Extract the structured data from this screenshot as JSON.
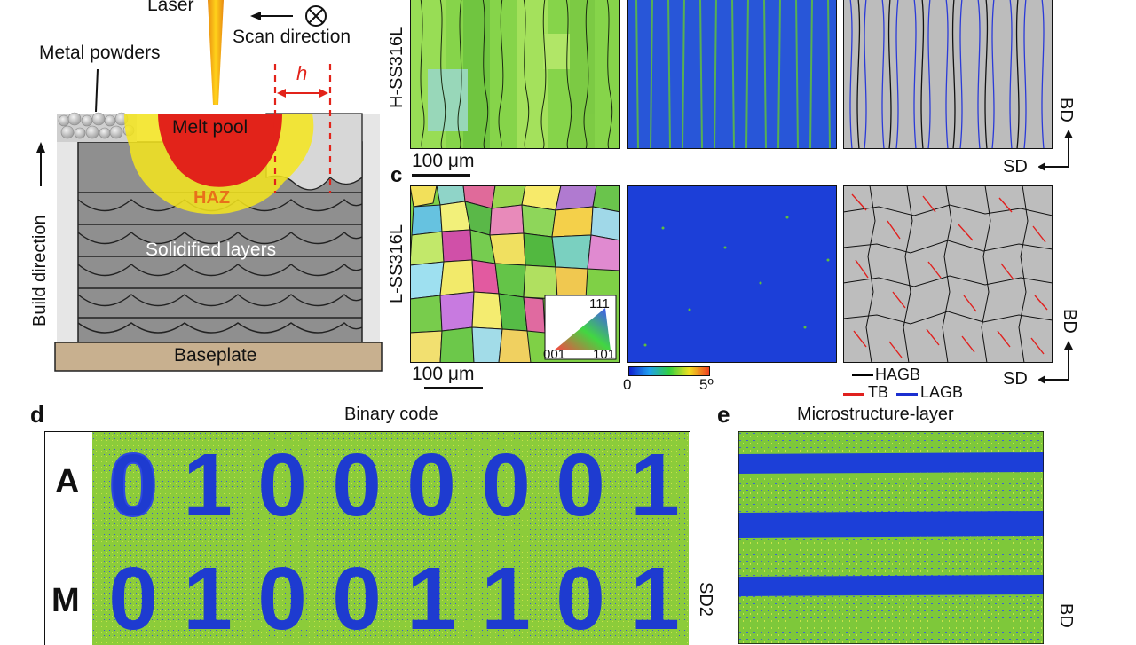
{
  "schematic": {
    "laser": "Laser",
    "scan_direction": "Scan direction",
    "metal_powders": "Metal powders",
    "h_symbol": "h",
    "melt_pool": "Melt pool",
    "haz": "HAZ",
    "solidified_layers": "Solidified layers",
    "build_direction": "Build direction",
    "baseplate": "Baseplate"
  },
  "panel_b": {
    "row_label": "H-SS316L",
    "scale_bar": "100 μm",
    "axis_bd": "BD",
    "axis_sd": "SD"
  },
  "panel_c": {
    "letter": "c",
    "row_label": "L-SS316L",
    "scale_bar": "100 μm",
    "ipf_111": "111",
    "ipf_001": "001",
    "ipf_101": "101",
    "kam_min": "0",
    "kam_max": "5º",
    "legend_hagb": "HAGB",
    "legend_tb": "TB",
    "legend_lagb": "LAGB",
    "axis_bd": "BD",
    "axis_sd": "SD",
    "colors": {
      "hagb": "#000000",
      "tb": "#e0201e",
      "lagb": "#1b2fd0"
    }
  },
  "panel_d": {
    "letter": "d",
    "title": "Binary code",
    "row_a_label": "A",
    "row_m_label": "M",
    "row_a_digits": [
      "0",
      "1",
      "0",
      "0",
      "0",
      "0",
      "0",
      "1"
    ],
    "row_m_digits": [
      "0",
      "1",
      "0",
      "0",
      "1",
      "1",
      "0",
      "1"
    ],
    "side_label": "SD2"
  },
  "panel_e": {
    "letter": "e",
    "title": "Microstructure-layer",
    "side_label": "BD"
  },
  "palette": {
    "kam_green": "#7ec83a",
    "kam_blue": "#1c3fd8",
    "melt_red": "#e2231a",
    "haz_yellow": "#f6e61c",
    "base_tan": "#c8b08f",
    "layer_gray": "#8f8f8f"
  }
}
